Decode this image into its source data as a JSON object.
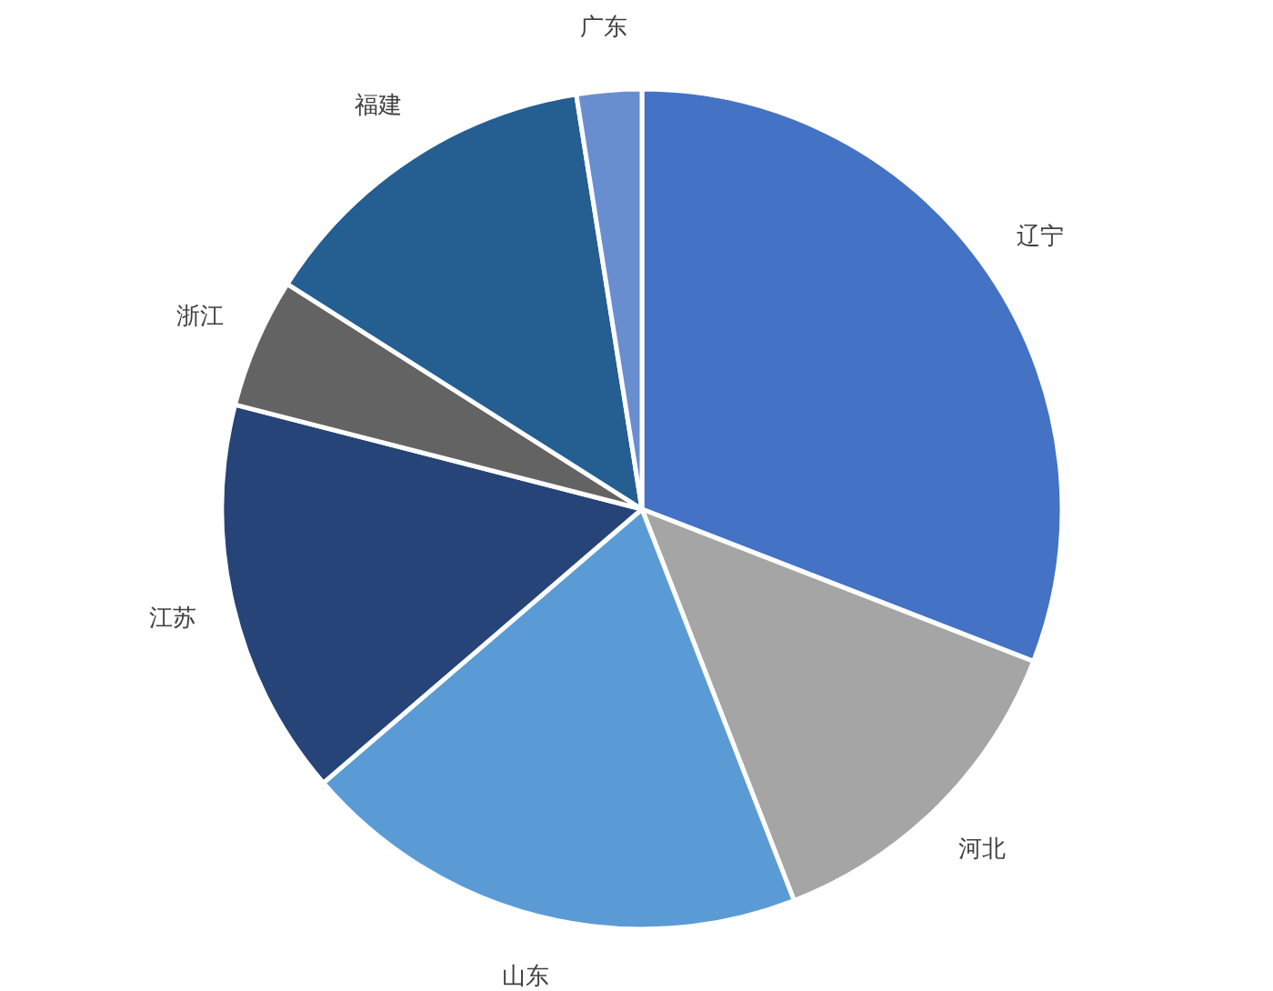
{
  "chart_data": {
    "type": "pie",
    "categories": [
      "辽宁",
      "河北",
      "山东",
      "江苏",
      "浙江",
      "福建",
      "广东"
    ],
    "values": [
      30.9,
      13.2,
      19.6,
      15.3,
      5.0,
      13.5,
      2.5
    ],
    "colors": [
      "#4472c4",
      "#a5a5a5",
      "#5b9bd5",
      "#264478",
      "#636363",
      "#255e91",
      "#698ed0"
    ]
  }
}
